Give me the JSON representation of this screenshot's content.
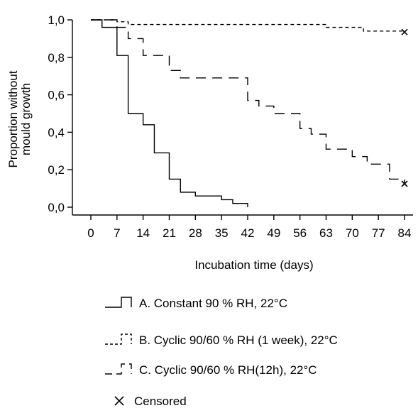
{
  "chart_data": {
    "type": "line",
    "step": true,
    "title": "",
    "xlabel": "Incubation time (days)",
    "ylabel": [
      "Proportion without",
      "mould growth"
    ],
    "xlim": [
      -2,
      87
    ],
    "ylim": [
      -0.04,
      1.02
    ],
    "xticks": [
      0,
      7,
      14,
      21,
      28,
      35,
      42,
      49,
      56,
      63,
      70,
      77,
      84
    ],
    "yticks": [
      0,
      0.2,
      0.4,
      0.6,
      0.8,
      1.0
    ],
    "ytick_labels": [
      "0,0",
      "0,2",
      "0,4",
      "0,6",
      "0,8",
      "1,0"
    ],
    "series": [
      {
        "name": "A. Constant 90 % RH, 22°C",
        "dash": "solid",
        "x": [
          0,
          3,
          7,
          10,
          14,
          17,
          21,
          24,
          28,
          35,
          38,
          42
        ],
        "y": [
          1.0,
          0.96,
          0.81,
          0.5,
          0.44,
          0.29,
          0.15,
          0.08,
          0.06,
          0.04,
          0.02,
          0.0
        ]
      },
      {
        "name": "B. Cyclic 90/60 % RH (1 week), 22°C",
        "dash": "short",
        "x": [
          0,
          7,
          10,
          56,
          63,
          70,
          73,
          84
        ],
        "y": [
          1.0,
          0.99,
          0.975,
          0.975,
          0.96,
          0.96,
          0.94,
          0.94
        ],
        "censored": [
          [
            84,
            0.935
          ]
        ]
      },
      {
        "name": "C. Cyclic 90/60 % RH(12h), 22°C",
        "dash": "long",
        "x": [
          0,
          7,
          10,
          14,
          21,
          24,
          28,
          35,
          42,
          45,
          49,
          53,
          56,
          59,
          63,
          70,
          74,
          80,
          84
        ],
        "y": [
          1.0,
          0.96,
          0.9,
          0.81,
          0.73,
          0.69,
          0.69,
          0.69,
          0.57,
          0.54,
          0.5,
          0.5,
          0.42,
          0.39,
          0.31,
          0.27,
          0.23,
          0.15,
          0.13
        ],
        "censored": [
          [
            84,
            0.125
          ]
        ]
      }
    ],
    "legend_placement": "bottom",
    "censored_label": "Censored",
    "grid": false
  }
}
